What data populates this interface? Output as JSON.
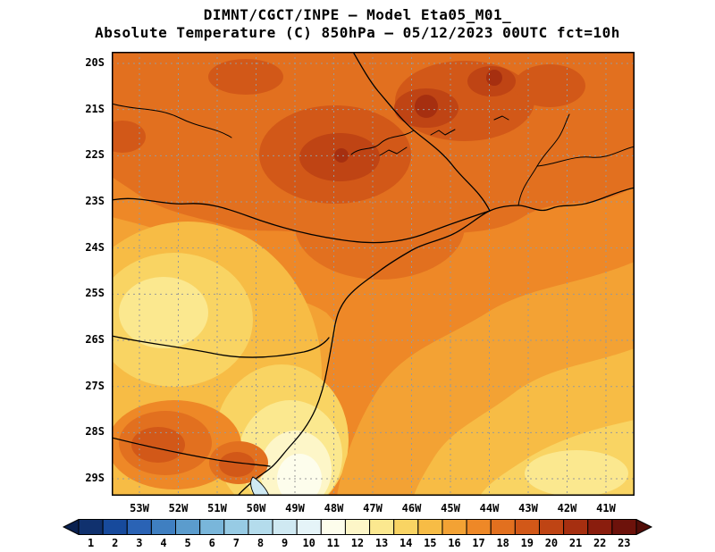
{
  "header": {
    "line1": "DIMNT/CGCT/INPE —  Model Eta05_M01_",
    "line2": "Absolute Temperature (C) 850hPa —  05/12/2023 00UTC fct=10h"
  },
  "axes": {
    "lat_labels": [
      "20S",
      "21S",
      "22S",
      "23S",
      "24S",
      "25S",
      "26S",
      "27S",
      "28S",
      "29S"
    ],
    "lon_labels": [
      "53W",
      "52W",
      "51W",
      "50W",
      "49W",
      "48W",
      "47W",
      "46W",
      "45W",
      "44W",
      "43W",
      "42W",
      "41W"
    ]
  },
  "colorbar": {
    "values": [
      "1",
      "2",
      "3",
      "4",
      "5",
      "6",
      "7",
      "8",
      "9",
      "10",
      "11",
      "12",
      "13",
      "14",
      "15",
      "16",
      "17",
      "18",
      "19",
      "20",
      "21",
      "22",
      "23"
    ],
    "colors": [
      "#10316e",
      "#174a9c",
      "#2a63b5",
      "#3f7fc1",
      "#5b9ccd",
      "#79b6da",
      "#97cbe4",
      "#b4dcec",
      "#cfe9f2",
      "#e5f4f8",
      "#fdfdec",
      "#fdf6c8",
      "#fbe88f",
      "#f9d463",
      "#f7bc45",
      "#f3a234",
      "#ee8827",
      "#e2701f",
      "#d25818",
      "#bf4414",
      "#a62f10",
      "#8a1d0d",
      "#6d120b"
    ],
    "under_arrow_color": "#0a2150",
    "over_arrow_color": "#520d08"
  },
  "chart_data": {
    "type": "heatmap",
    "title": "DIMNT/CGCT/INPE —  Model Eta05_M01_",
    "subtitle": "Absolute Temperature (C) 850hPa —  05/12/2023 00UTC fct=10h",
    "variable": "Absolute Temperature",
    "units": "C",
    "level": "850hPa",
    "model": "Eta05_M01_",
    "valid": "05/12/2023 00UTC",
    "forecast": "fct=10h",
    "x_ticks": [
      "53W",
      "52W",
      "51W",
      "50W",
      "49W",
      "48W",
      "47W",
      "46W",
      "45W",
      "44W",
      "43W",
      "42W",
      "41W"
    ],
    "y_ticks": [
      "20S",
      "21S",
      "22S",
      "23S",
      "24S",
      "25S",
      "26S",
      "27S",
      "28S",
      "29S"
    ],
    "colorbar_ticks": [
      1,
      2,
      3,
      4,
      5,
      6,
      7,
      8,
      9,
      10,
      11,
      12,
      13,
      14,
      15,
      16,
      17,
      18,
      19,
      20,
      21,
      22,
      23
    ],
    "palette": [
      "#10316e",
      "#174a9c",
      "#2a63b5",
      "#3f7fc1",
      "#5b9ccd",
      "#79b6da",
      "#97cbe4",
      "#b4dcec",
      "#cfe9f2",
      "#e5f4f8",
      "#fdfdec",
      "#fdf6c8",
      "#fbe88f",
      "#f9d463",
      "#f7bc45",
      "#f3a234",
      "#ee8827",
      "#e2701f",
      "#d25818",
      "#bf4414",
      "#a62f10",
      "#8a1d0d",
      "#6d120b"
    ],
    "legend_position": "bottom",
    "grid": true,
    "field_regions": [
      {
        "area": "north of 23S (20S-23S, 41W-53W)",
        "approx_temp_c": 18
      },
      {
        "area": "warm cores near 47.5W 22S and 44.5W-46.5W 20S-21.5S",
        "approx_temp_c": 20.5
      },
      {
        "area": "central band 23S-25S",
        "approx_temp_c": 17
      },
      {
        "area": "western interior 50.5W-53W, 23.5S-27S",
        "approx_temp_c": 15
      },
      {
        "area": "inner western patches 52W-53W, 24S-26S",
        "approx_temp_c": 13.5
      },
      {
        "area": "southwest warm blobs 51.5W-53W, 27S-28.5S",
        "approx_temp_c": 18.5
      },
      {
        "area": "south-central coast 48.5W-50.5W, 28S-29.5S",
        "approx_temp_c": 12
      },
      {
        "area": "coastal minimum near 49.7W 29.3S",
        "approx_temp_c": 11
      },
      {
        "area": "offshore southeast 41W-47W, 25S-29.5S",
        "approx_temp_c": 15.5
      },
      {
        "area": "far offshore bottom-right corner",
        "approx_temp_c": 14
      }
    ]
  }
}
